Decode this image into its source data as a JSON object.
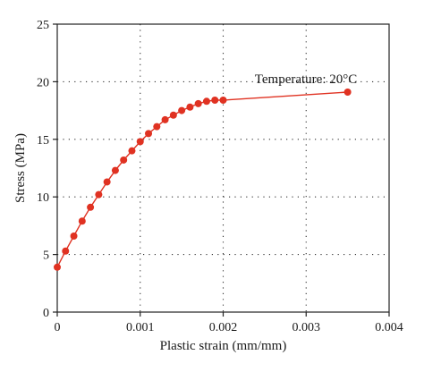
{
  "chart_data": {
    "type": "line",
    "xlabel": "Plastic strain (mm/mm)",
    "ylabel": "Stress (MPa)",
    "xlim": [
      0,
      0.004
    ],
    "ylim": [
      0,
      25
    ],
    "x_ticks": [
      0,
      0.001,
      0.002,
      0.003,
      0.004
    ],
    "x_tick_labels": [
      "0",
      "0.001",
      "0.002",
      "0.003",
      "0.004"
    ],
    "y_ticks": [
      0,
      5,
      10,
      15,
      20,
      25
    ],
    "y_tick_labels": [
      "0",
      "5",
      "10",
      "15",
      "20",
      "25"
    ],
    "grid": true,
    "annotation": "Temperature: 20°C",
    "series": [
      {
        "color": "#e03222",
        "marker": "circle",
        "x": [
          0,
          0.0001,
          0.0002,
          0.0003,
          0.0004,
          0.0005,
          0.0006,
          0.0007,
          0.0008,
          0.0009,
          0.001,
          0.0011,
          0.0012,
          0.0013,
          0.0014,
          0.0015,
          0.0016,
          0.0017,
          0.0018,
          0.0019,
          0.002,
          0.0035
        ],
        "y": [
          3.9,
          5.3,
          6.6,
          7.9,
          9.1,
          10.2,
          11.3,
          12.3,
          13.2,
          14.0,
          14.8,
          15.5,
          16.1,
          16.7,
          17.1,
          17.5,
          17.8,
          18.1,
          18.3,
          18.4,
          18.4,
          19.1
        ]
      }
    ]
  }
}
